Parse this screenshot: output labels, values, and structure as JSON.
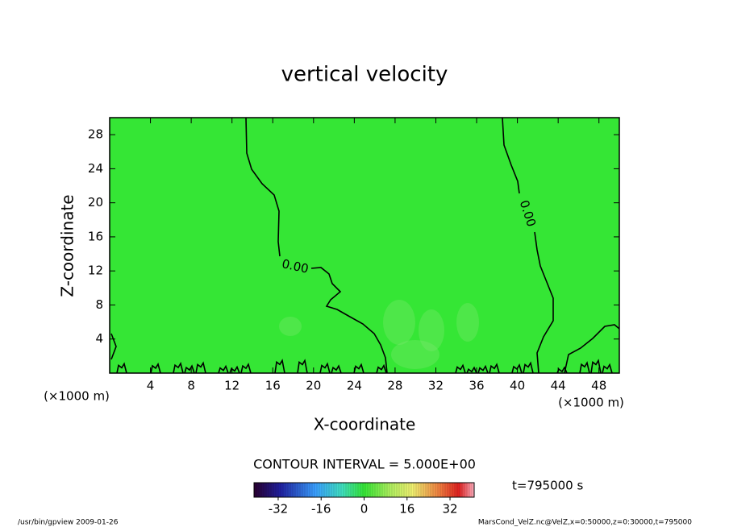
{
  "chart_data": {
    "type": "contour",
    "title": "vertical velocity",
    "x_label": "X-coordinate",
    "y_label": "Z-coordinate",
    "x_unit": "(×1000 m)",
    "y_unit": "(×1000 m)",
    "xlim": [
      0,
      50
    ],
    "ylim": [
      0,
      30
    ],
    "xticks": [
      4,
      8,
      12,
      16,
      20,
      24,
      28,
      32,
      36,
      40,
      44,
      48
    ],
    "yticks": [
      4,
      8,
      12,
      16,
      20,
      24,
      28
    ],
    "field_color": "#35e635",
    "contour_level": {
      "value": 0,
      "label": "0.00"
    },
    "contour_interval": "CONTOUR INTERVAL = 5.000E+00",
    "time_label": "t=795000 s",
    "colorbar": {
      "clim": [
        -41,
        41
      ],
      "ticks": [
        -32,
        -16,
        0,
        16,
        32
      ]
    },
    "footer_left": "/usr/bin/gpview   2009-01-26",
    "footer_right": "MarsCond_VelZ.nc@VelZ,x=0:50000,z=0:30000,t=795000"
  }
}
